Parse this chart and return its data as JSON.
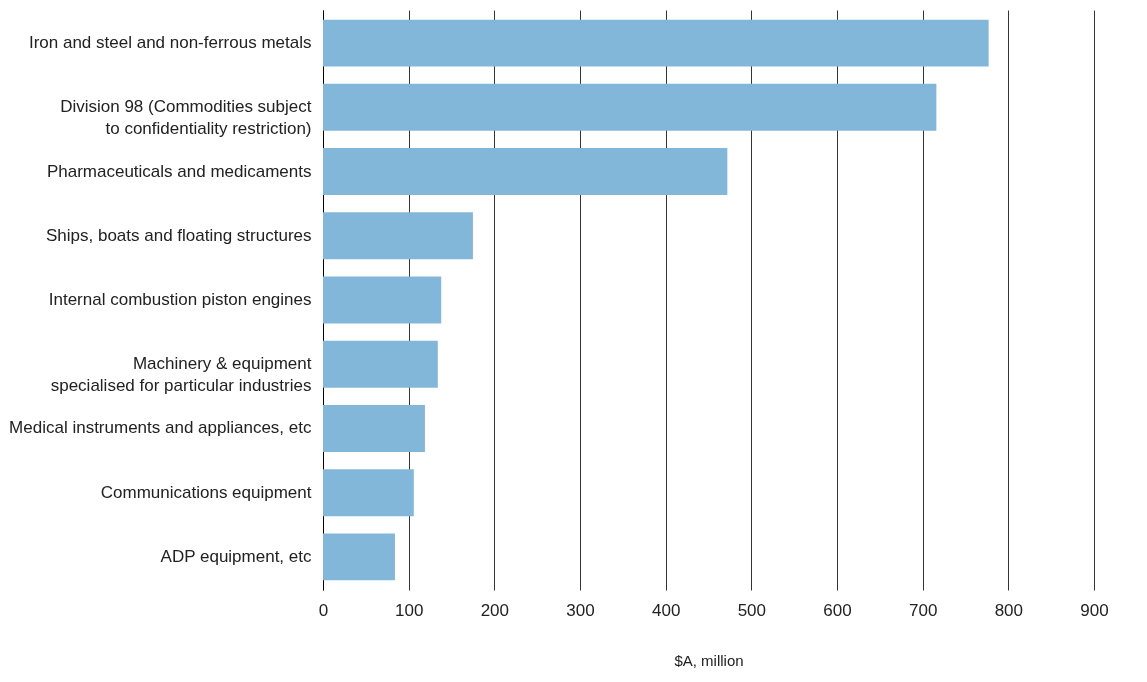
{
  "chart_data": {
    "type": "bar",
    "orientation": "horizontal",
    "xlabel": "$A, million",
    "categories": [
      "Iron and steel and non-ferrous metals",
      "Division 98 (Commodities subject\nto confidentiality restriction)",
      "Pharmaceuticals and medicaments",
      "Ships, boats and floating structures",
      "Internal combustion piston engines",
      "Machinery & equipment\nspecialised for particular industries",
      "Medical instruments and appliances, etc",
      "Communications equipment",
      "ADP equipment, etc"
    ],
    "values": [
      777,
      716,
      472,
      175,
      138,
      134,
      119,
      106,
      84
    ],
    "color": "#82b7d9",
    "xlim": [
      0,
      900
    ],
    "xticks": [
      0,
      100,
      200,
      300,
      400,
      500,
      600,
      700,
      800,
      900
    ],
    "grid": "x"
  }
}
